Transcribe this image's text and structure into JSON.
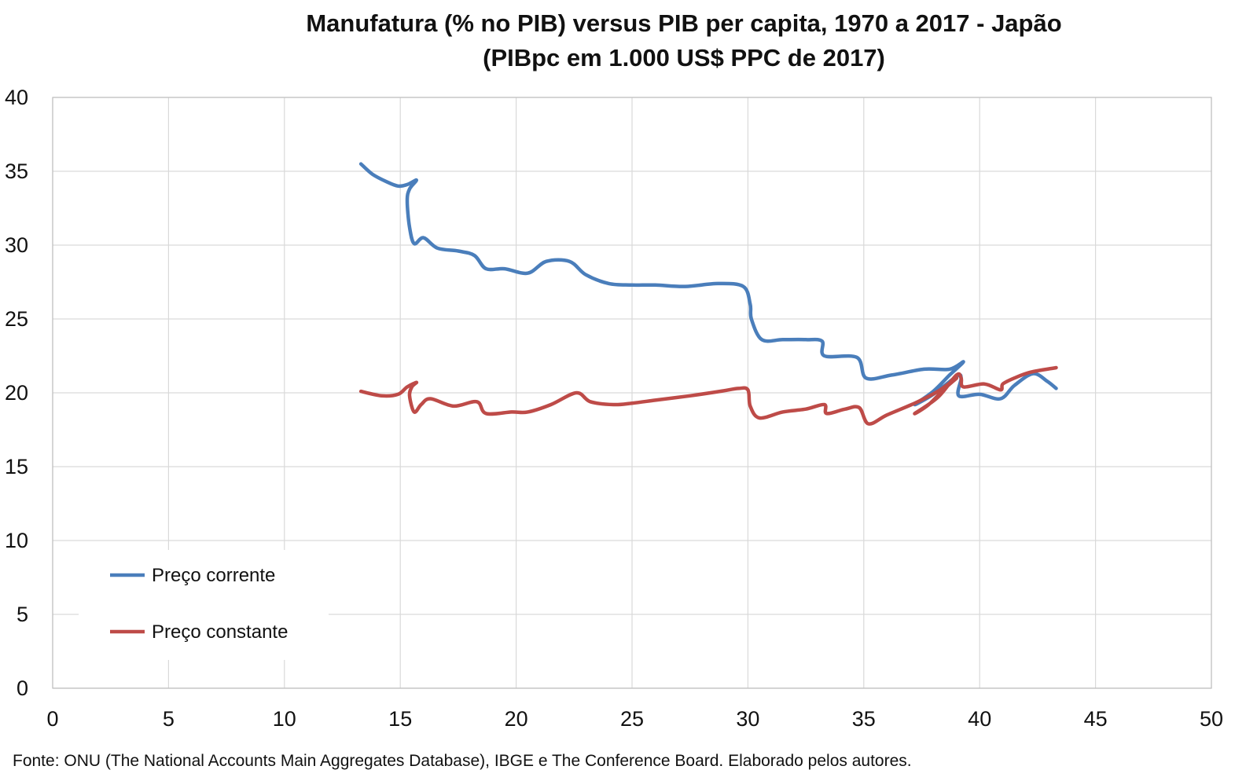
{
  "chart_data": {
    "type": "line",
    "title_line1": "Manufatura (% no PIB) versus PIB per capita, 1970 a 2017 - Japão",
    "title_line2": "(PIBpc em 1.000 US$ PPC de 2017)",
    "xlabel": "",
    "ylabel": "",
    "xlim": [
      0,
      50
    ],
    "ylim": [
      0,
      40
    ],
    "x_ticks": [
      "0",
      "5",
      "10",
      "15",
      "20",
      "25",
      "30",
      "35",
      "40",
      "45",
      "50"
    ],
    "y_ticks": [
      "0",
      "5",
      "10",
      "15",
      "20",
      "25",
      "30",
      "35",
      "40"
    ],
    "grid": true,
    "legend_position": "lower-left",
    "source": "Fonte: ONU (The National Accounts Main Aggregates Database), IBGE e The Conference Board. Elaborado pelos autores.",
    "series": [
      {
        "name": "Preço corrente",
        "color": "#4a7ebb",
        "points": [
          [
            13.3,
            35.5
          ],
          [
            13.8,
            34.8
          ],
          [
            14.4,
            34.3
          ],
          [
            14.9,
            34.0
          ],
          [
            15.3,
            34.1
          ],
          [
            15.7,
            34.4
          ],
          [
            15.4,
            33.8
          ],
          [
            15.3,
            33.0
          ],
          [
            15.4,
            31.2
          ],
          [
            15.6,
            30.1
          ],
          [
            16.0,
            30.5
          ],
          [
            16.6,
            29.8
          ],
          [
            17.5,
            29.6
          ],
          [
            18.2,
            29.3
          ],
          [
            18.7,
            28.4
          ],
          [
            19.5,
            28.4
          ],
          [
            20.5,
            28.1
          ],
          [
            21.3,
            28.9
          ],
          [
            22.3,
            28.9
          ],
          [
            23.0,
            28.0
          ],
          [
            24.0,
            27.4
          ],
          [
            25.0,
            27.3
          ],
          [
            26.0,
            27.3
          ],
          [
            27.3,
            27.2
          ],
          [
            28.7,
            27.4
          ],
          [
            29.8,
            27.2
          ],
          [
            30.1,
            26.0
          ],
          [
            30.15,
            25.0
          ],
          [
            30.6,
            23.6
          ],
          [
            31.5,
            23.6
          ],
          [
            32.5,
            23.6
          ],
          [
            33.2,
            23.5
          ],
          [
            33.3,
            22.5
          ],
          [
            34.7,
            22.4
          ],
          [
            35.1,
            21.0
          ],
          [
            36.2,
            21.2
          ],
          [
            37.6,
            21.6
          ],
          [
            38.7,
            21.6
          ],
          [
            39.3,
            22.1
          ],
          [
            38.7,
            21.2
          ],
          [
            38.0,
            20.1
          ],
          [
            37.2,
            19.2
          ],
          [
            38.0,
            19.9
          ],
          [
            39.0,
            21.1
          ],
          [
            39.2,
            21.0
          ],
          [
            39.1,
            19.8
          ],
          [
            40.0,
            19.9
          ],
          [
            40.9,
            19.6
          ],
          [
            41.5,
            20.5
          ],
          [
            42.3,
            21.3
          ],
          [
            42.9,
            20.8
          ],
          [
            43.3,
            20.3
          ]
        ]
      },
      {
        "name": "Preço constante",
        "color": "#be4b48",
        "points": [
          [
            13.3,
            20.1
          ],
          [
            14.2,
            19.8
          ],
          [
            14.9,
            19.9
          ],
          [
            15.3,
            20.4
          ],
          [
            15.7,
            20.7
          ],
          [
            15.5,
            20.4
          ],
          [
            15.4,
            19.8
          ],
          [
            15.6,
            18.7
          ],
          [
            15.9,
            19.2
          ],
          [
            16.3,
            19.6
          ],
          [
            17.3,
            19.1
          ],
          [
            18.3,
            19.4
          ],
          [
            18.7,
            18.6
          ],
          [
            19.8,
            18.7
          ],
          [
            20.5,
            18.7
          ],
          [
            21.5,
            19.2
          ],
          [
            22.6,
            20.0
          ],
          [
            23.2,
            19.4
          ],
          [
            24.2,
            19.2
          ],
          [
            25.0,
            19.3
          ],
          [
            26.0,
            19.5
          ],
          [
            27.5,
            19.8
          ],
          [
            28.8,
            20.1
          ],
          [
            29.6,
            20.3
          ],
          [
            30.0,
            20.2
          ],
          [
            30.1,
            19.1
          ],
          [
            30.5,
            18.3
          ],
          [
            31.5,
            18.7
          ],
          [
            32.5,
            18.9
          ],
          [
            33.3,
            19.2
          ],
          [
            33.4,
            18.6
          ],
          [
            34.2,
            18.9
          ],
          [
            34.8,
            19.0
          ],
          [
            35.2,
            17.9
          ],
          [
            36.0,
            18.5
          ],
          [
            37.2,
            19.3
          ],
          [
            38.2,
            20.1
          ],
          [
            39.0,
            21.0
          ],
          [
            38.5,
            20.3
          ],
          [
            37.8,
            19.2
          ],
          [
            37.2,
            18.6
          ],
          [
            38.2,
            19.7
          ],
          [
            39.0,
            21.2
          ],
          [
            39.2,
            21.0
          ],
          [
            39.3,
            20.4
          ],
          [
            40.2,
            20.6
          ],
          [
            40.9,
            20.2
          ],
          [
            41.0,
            20.6
          ],
          [
            41.5,
            21.0
          ],
          [
            42.2,
            21.4
          ],
          [
            43.3,
            21.7
          ]
        ]
      }
    ]
  }
}
